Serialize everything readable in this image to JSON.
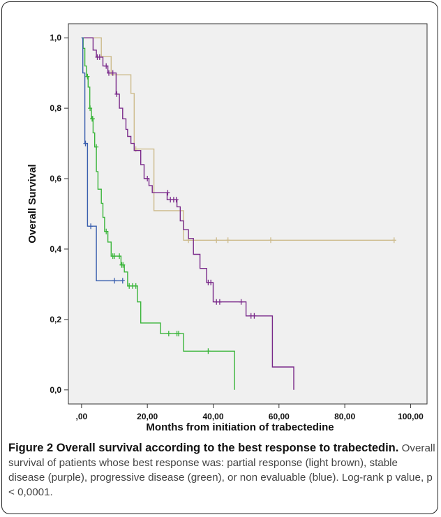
{
  "figure": {
    "caption_title": "Figure 2 Overall survival according to the best response to trabectedin.",
    "caption_text": "Overall survival of patients whose best response was: partial response (light brown), stable disease (purple), progressive disease (green), or non evaluable (blue). Log-rank p value, p < 0,0001."
  },
  "chart_data": {
    "type": "line",
    "step": true,
    "xlabel": "Months from initiation of trabectedine",
    "ylabel": "Overall Survival",
    "xlim": [
      -4,
      105
    ],
    "ylim": [
      -0.04,
      1.04
    ],
    "x_ticks": [
      0,
      20,
      40,
      60,
      80,
      100
    ],
    "x_tick_labels": [
      ",00",
      "20,00",
      "40,00",
      "60,00",
      "80,00",
      "100,00"
    ],
    "y_ticks": [
      0,
      0.2,
      0.4,
      0.6,
      0.8,
      1.0
    ],
    "y_tick_labels": [
      "0,0",
      "0,2",
      "0,4",
      "0,6",
      "0,8",
      "1,0"
    ],
    "grid": false,
    "background": "#f0f0f0",
    "series": [
      {
        "key": "partial-response",
        "color": "#cdbb8c",
        "points": [
          [
            0,
            1.0
          ],
          [
            6,
            1.0
          ],
          [
            6,
            0.947
          ],
          [
            9,
            0.947
          ],
          [
            9,
            0.895
          ],
          [
            15,
            0.895
          ],
          [
            15,
            0.842
          ],
          [
            16,
            0.842
          ],
          [
            16,
            0.684
          ],
          [
            22,
            0.684
          ],
          [
            22,
            0.509
          ],
          [
            31,
            0.509
          ],
          [
            31,
            0.425
          ],
          [
            95,
            0.425
          ]
        ],
        "censors": [
          [
            16.5,
            0.684
          ],
          [
            32.5,
            0.425
          ],
          [
            41,
            0.425
          ],
          [
            44.5,
            0.425
          ],
          [
            57.5,
            0.425
          ],
          [
            95,
            0.425
          ]
        ]
      },
      {
        "key": "stable-disease",
        "color": "#7a2a8a",
        "points": [
          [
            0,
            1.0
          ],
          [
            3.5,
            1.0
          ],
          [
            3.5,
            0.965
          ],
          [
            4.5,
            0.965
          ],
          [
            4.5,
            0.945
          ],
          [
            6.5,
            0.945
          ],
          [
            6.5,
            0.92
          ],
          [
            8,
            0.92
          ],
          [
            8,
            0.9
          ],
          [
            10.5,
            0.9
          ],
          [
            10.5,
            0.84
          ],
          [
            11.5,
            0.84
          ],
          [
            11.5,
            0.8
          ],
          [
            12.5,
            0.8
          ],
          [
            12.5,
            0.77
          ],
          [
            13.5,
            0.77
          ],
          [
            13.5,
            0.74
          ],
          [
            14,
            0.74
          ],
          [
            14,
            0.72
          ],
          [
            15,
            0.72
          ],
          [
            15,
            0.7
          ],
          [
            16,
            0.7
          ],
          [
            16,
            0.68
          ],
          [
            18,
            0.68
          ],
          [
            18,
            0.64
          ],
          [
            19,
            0.64
          ],
          [
            19,
            0.6
          ],
          [
            20.5,
            0.6
          ],
          [
            20.5,
            0.58
          ],
          [
            21.5,
            0.58
          ],
          [
            21.5,
            0.56
          ],
          [
            26,
            0.56
          ],
          [
            26,
            0.54
          ],
          [
            29,
            0.54
          ],
          [
            29,
            0.52
          ],
          [
            30,
            0.52
          ],
          [
            30,
            0.48
          ],
          [
            31,
            0.48
          ],
          [
            31,
            0.455
          ],
          [
            32.5,
            0.455
          ],
          [
            32.5,
            0.43
          ],
          [
            34,
            0.43
          ],
          [
            34,
            0.385
          ],
          [
            36,
            0.385
          ],
          [
            36,
            0.345
          ],
          [
            38,
            0.345
          ],
          [
            38,
            0.305
          ],
          [
            40,
            0.305
          ],
          [
            40,
            0.25
          ],
          [
            50,
            0.25
          ],
          [
            50,
            0.21
          ],
          [
            58,
            0.21
          ],
          [
            58,
            0.065
          ],
          [
            64.5,
            0.065
          ],
          [
            64.5,
            0.0
          ]
        ],
        "censors": [
          [
            4.8,
            0.945
          ],
          [
            5.5,
            0.945
          ],
          [
            7.5,
            0.92
          ],
          [
            8.3,
            0.9
          ],
          [
            9.5,
            0.9
          ],
          [
            10.7,
            0.84
          ],
          [
            20,
            0.6
          ],
          [
            26.2,
            0.56
          ],
          [
            27,
            0.54
          ],
          [
            28,
            0.54
          ],
          [
            28.8,
            0.54
          ],
          [
            38.5,
            0.305
          ],
          [
            39.3,
            0.305
          ],
          [
            41,
            0.25
          ],
          [
            42,
            0.25
          ],
          [
            48.5,
            0.25
          ],
          [
            51.5,
            0.21
          ],
          [
            52.5,
            0.21
          ]
        ]
      },
      {
        "key": "progressive-disease",
        "color": "#3ab53a",
        "points": [
          [
            0,
            1.0
          ],
          [
            0.5,
            1.0
          ],
          [
            0.5,
            0.97
          ],
          [
            1,
            0.97
          ],
          [
            1,
            0.92
          ],
          [
            1.5,
            0.92
          ],
          [
            1.5,
            0.89
          ],
          [
            2,
            0.89
          ],
          [
            2,
            0.86
          ],
          [
            2.5,
            0.86
          ],
          [
            2.5,
            0.8
          ],
          [
            3,
            0.8
          ],
          [
            3,
            0.77
          ],
          [
            3.5,
            0.77
          ],
          [
            3.5,
            0.73
          ],
          [
            4,
            0.73
          ],
          [
            4,
            0.69
          ],
          [
            4.5,
            0.69
          ],
          [
            4.5,
            0.62
          ],
          [
            5,
            0.62
          ],
          [
            5,
            0.57
          ],
          [
            6,
            0.57
          ],
          [
            6,
            0.53
          ],
          [
            6.5,
            0.53
          ],
          [
            6.5,
            0.49
          ],
          [
            7,
            0.49
          ],
          [
            7,
            0.45
          ],
          [
            8,
            0.45
          ],
          [
            8,
            0.42
          ],
          [
            9,
            0.42
          ],
          [
            9,
            0.38
          ],
          [
            12,
            0.38
          ],
          [
            12,
            0.355
          ],
          [
            13,
            0.355
          ],
          [
            13,
            0.335
          ],
          [
            14,
            0.335
          ],
          [
            14,
            0.295
          ],
          [
            17,
            0.295
          ],
          [
            17,
            0.25
          ],
          [
            18,
            0.25
          ],
          [
            18,
            0.19
          ],
          [
            24,
            0.19
          ],
          [
            24,
            0.16
          ],
          [
            31,
            0.16
          ],
          [
            31,
            0.11
          ],
          [
            46.5,
            0.11
          ],
          [
            46.5,
            0.0
          ]
        ],
        "censors": [
          [
            1.8,
            0.89
          ],
          [
            2.6,
            0.8
          ],
          [
            3.2,
            0.77
          ],
          [
            3.4,
            0.77
          ],
          [
            4.5,
            0.69
          ],
          [
            7.5,
            0.45
          ],
          [
            9.5,
            0.38
          ],
          [
            10,
            0.38
          ],
          [
            11.5,
            0.38
          ],
          [
            12.2,
            0.355
          ],
          [
            12.6,
            0.355
          ],
          [
            14.5,
            0.295
          ],
          [
            15.5,
            0.295
          ],
          [
            16.5,
            0.295
          ],
          [
            26.5,
            0.16
          ],
          [
            29,
            0.16
          ],
          [
            29.5,
            0.16
          ],
          [
            38.5,
            0.11
          ]
        ]
      },
      {
        "key": "non-evaluable",
        "color": "#3a5fae",
        "points": [
          [
            0,
            1.0
          ],
          [
            0.4,
            1.0
          ],
          [
            0.4,
            0.9
          ],
          [
            1,
            0.9
          ],
          [
            1,
            0.7
          ],
          [
            1.8,
            0.7
          ],
          [
            1.8,
            0.465
          ],
          [
            4.5,
            0.465
          ],
          [
            4.5,
            0.31
          ],
          [
            12.5,
            0.31
          ]
        ],
        "censors": [
          [
            1.2,
            0.7
          ],
          [
            2.8,
            0.465
          ],
          [
            10,
            0.31
          ],
          [
            12.5,
            0.31
          ]
        ]
      }
    ]
  }
}
